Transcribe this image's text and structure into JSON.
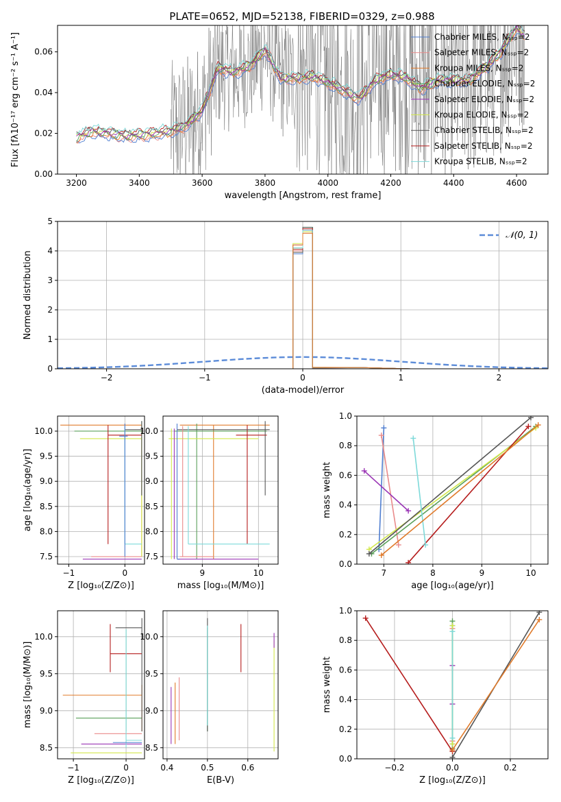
{
  "title": "PLATE=0652, MJD=52138, FIBERID=0329, z=0.988",
  "legend_labels": [
    "Chabrier MILES, Nₛₛₚ=2",
    "Salpeter MILES, Nₛₛₚ=2",
    "Kroupa MILES, Nₛₛₚ=2",
    "Chabrier ELODIE, Nₛₛₚ=2",
    "Salpeter ELODIE, Nₛₛₚ=2",
    "Kroupa ELODIE, Nₛₛₚ=2",
    "Chabrier STELIB, Nₛₛₚ=2",
    "Salpeter STELIB, Nₛₛₚ=2",
    "Kroupa STELIB, Nₛₛₚ=2"
  ],
  "colors": [
    "#4f7ed0",
    "#e98a8a",
    "#5aa05a",
    "#9a35b5",
    "#d2e84a",
    "#555555",
    "#b51c1c",
    "#7dd9d9",
    "#e07a2a"
  ],
  "chart_data": [
    {
      "type": "line",
      "xlabel": "wavelength [Angstrom, rest frame]",
      "ylabel": "Flux [fλ10⁻¹⁷ erg cm⁻² s⁻¹ A⁻¹]",
      "xlim": [
        3140,
        4700
      ],
      "ylim": [
        0,
        0.073
      ],
      "xticks": [
        3200,
        3400,
        3600,
        3800,
        4000,
        4200,
        4400,
        4600
      ],
      "yticks": [
        0.0,
        0.02,
        0.04,
        0.06
      ],
      "grid": false,
      "legend_position": "top-right",
      "model_flux": {
        "x": [
          3200,
          3250,
          3300,
          3350,
          3400,
          3450,
          3500,
          3550,
          3600,
          3650,
          3700,
          3750,
          3800,
          3850,
          3900,
          3950,
          4000,
          4050,
          4100,
          4150,
          4200,
          4250,
          4300,
          4350,
          4400,
          4450,
          4500,
          4550,
          4600,
          4625
        ],
        "y": [
          0.018,
          0.021,
          0.02,
          0.019,
          0.019,
          0.02,
          0.021,
          0.024,
          0.031,
          0.052,
          0.05,
          0.053,
          0.061,
          0.047,
          0.047,
          0.048,
          0.045,
          0.041,
          0.037,
          0.046,
          0.049,
          0.047,
          0.042,
          0.046,
          0.046,
          0.046,
          0.052,
          0.06,
          0.072,
          0.068
        ]
      },
      "observed_data_start": 3500
    },
    {
      "type": "histogram",
      "xlabel": "(data-model)/error",
      "ylabel": "Normed distribution",
      "xlim": [
        -2.5,
        2.5
      ],
      "ylim": [
        0,
        5
      ],
      "xticks": [
        -2,
        -1,
        0,
        1,
        2
      ],
      "yticks": [
        0,
        1,
        2,
        3,
        4,
        5
      ],
      "grid": true,
      "legend_label": "𝒩(0, 1)",
      "legend_position": "top-right",
      "bin_edges": [
        -0.1,
        0.0,
        0.1
      ],
      "series_heights": [
        [
          3.9,
          4.7
        ],
        [
          4.0,
          4.6
        ],
        [
          4.1,
          4.8
        ],
        [
          4.2,
          4.7
        ],
        [
          4.25,
          4.65
        ],
        [
          3.95,
          4.8
        ],
        [
          4.05,
          4.75
        ],
        [
          4.1,
          4.7
        ],
        [
          4.2,
          4.6
        ]
      ]
    },
    {
      "type": "errorbar",
      "xlabel": "Z [log₁₀(Z/Z⊙)]",
      "ylabel": "age  [log₁₀(age/yr)]",
      "xlim": [
        -1.2,
        0.35
      ],
      "ylim": [
        7.35,
        10.3
      ],
      "xticks": [
        -1,
        0
      ],
      "yticks": [
        7.5,
        8.0,
        8.5,
        9.0,
        9.5,
        10.0
      ],
      "grid": true
    },
    {
      "type": "errorbar",
      "xlabel": "mass [log₁₀(M/M⊙)]",
      "xlim": [
        8.3,
        10.35
      ],
      "ylim": [
        7.35,
        10.3
      ],
      "xticks": [
        9,
        10
      ],
      "yticks": [
        7.5,
        8.0,
        8.5,
        9.0,
        9.5,
        10.0
      ],
      "grid": true
    },
    {
      "type": "line",
      "xlabel": "age  [log₁₀(age/yr)]",
      "ylabel": "mass weight",
      "xlim": [
        6.45,
        10.35
      ],
      "ylim": [
        0,
        1.0
      ],
      "xticks": [
        7,
        8,
        9,
        10
      ],
      "yticks": [
        0.0,
        0.2,
        0.4,
        0.6,
        0.8,
        1.0
      ],
      "grid": true,
      "series": [
        {
          "points": [
            [
              6.9,
              0.1
            ],
            [
              7.0,
              0.92
            ]
          ]
        },
        {
          "points": [
            [
              6.95,
              0.87
            ],
            [
              7.3,
              0.13
            ]
          ]
        },
        {
          "points": [
            [
              6.75,
              0.07
            ],
            [
              10.1,
              0.93
            ]
          ]
        },
        {
          "points": [
            [
              6.6,
              0.63
            ],
            [
              7.5,
              0.36
            ]
          ]
        },
        {
          "points": [
            [
              6.7,
              0.1
            ],
            [
              10.1,
              0.92
            ]
          ]
        },
        {
          "points": [
            [
              6.7,
              0.07
            ],
            [
              10.0,
              0.99
            ]
          ]
        },
        {
          "points": [
            [
              7.5,
              0.01
            ],
            [
              9.95,
              0.93
            ]
          ]
        },
        {
          "points": [
            [
              7.6,
              0.85
            ],
            [
              7.85,
              0.13
            ]
          ]
        },
        {
          "points": [
            [
              6.95,
              0.06
            ],
            [
              10.15,
              0.94
            ]
          ]
        }
      ]
    },
    {
      "type": "errorbar",
      "xlabel": "Z [log₁₀(Z/Z⊙)]",
      "ylabel": "mass [log₁₀(M/M⊙)]",
      "xlim": [
        -1.3,
        0.35
      ],
      "ylim": [
        8.35,
        10.35
      ],
      "xticks": [
        -1,
        0
      ],
      "yticks": [
        8.5,
        9.0,
        9.5,
        10.0
      ],
      "grid": true
    },
    {
      "type": "errorbar",
      "xlabel": "E(B-V)",
      "xlim": [
        0.39,
        0.675
      ],
      "ylim": [
        8.35,
        10.35
      ],
      "xticks": [
        0.4,
        0.5,
        0.6
      ],
      "yticks": [
        8.5,
        9.0,
        9.5,
        10.0
      ],
      "grid": true
    },
    {
      "type": "line",
      "xlabel": "Z [log₁₀(Z/Z⊙)]",
      "ylabel": "mass weight",
      "xlim": [
        -0.33,
        0.33
      ],
      "ylim": [
        0,
        1.0
      ],
      "xticks": [
        -0.2,
        0.0,
        0.2
      ],
      "yticks": [
        0.0,
        0.2,
        0.4,
        0.6,
        0.8,
        1.0
      ],
      "grid": true,
      "series": [
        {
          "points": [
            [
              0.0,
              0.1
            ],
            [
              0.0,
              0.9
            ]
          ]
        },
        {
          "points": [
            [
              0.0,
              0.12
            ],
            [
              0.0,
              0.88
            ]
          ]
        },
        {
          "points": [
            [
              0.0,
              0.07
            ],
            [
              0.0,
              0.93
            ]
          ]
        },
        {
          "points": [
            [
              0.0,
              0.37
            ],
            [
              0.0,
              0.63
            ]
          ]
        },
        {
          "points": [
            [
              0.0,
              0.1
            ],
            [
              0.0,
              0.9
            ]
          ]
        },
        {
          "points": [
            [
              0.0,
              0.01
            ],
            [
              0.3,
              0.99
            ]
          ]
        },
        {
          "points": [
            [
              -0.3,
              0.95
            ],
            [
              0.0,
              0.05
            ]
          ]
        },
        {
          "points": [
            [
              0.0,
              0.14
            ],
            [
              0.0,
              0.86
            ]
          ]
        },
        {
          "points": [
            [
              0.0,
              0.06
            ],
            [
              0.3,
              0.94
            ]
          ]
        }
      ]
    }
  ]
}
